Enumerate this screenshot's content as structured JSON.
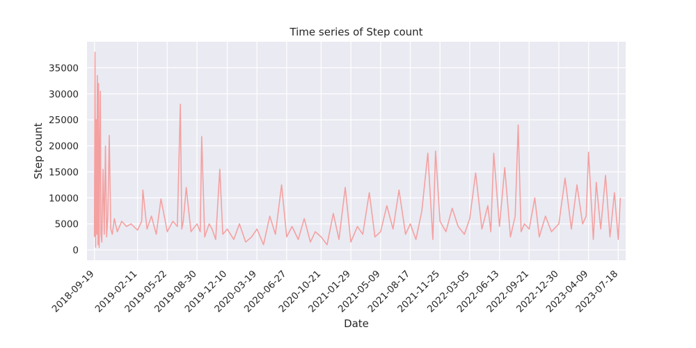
{
  "chart_data": {
    "type": "line",
    "title": "Time series of Step count",
    "xlabel": "Date",
    "ylabel": "Step count",
    "x_range": [
      "2018-08-25",
      "2023-08-12"
    ],
    "ylim": [
      -2000,
      40000
    ],
    "grid": true,
    "line_color": "#f4a0a0",
    "background_color": "#eaeaf2",
    "y_ticks": [
      0,
      5000,
      10000,
      15000,
      20000,
      25000,
      30000,
      35000
    ],
    "x_ticks": [
      "2018-09-19",
      "2019-02-11",
      "2019-05-22",
      "2019-08-30",
      "2019-12-10",
      "2020-03-19",
      "2020-06-27",
      "2020-10-21",
      "2021-01-29",
      "2021-05-09",
      "2021-08-17",
      "2021-11-25",
      "2022-03-05",
      "2022-06-13",
      "2022-09-21",
      "2022-12-30",
      "2023-04-09",
      "2023-07-18"
    ],
    "series": [
      {
        "x": [
          "2018-09-19",
          "2018-09-21",
          "2018-09-23",
          "2018-09-25",
          "2018-09-27",
          "2018-09-29",
          "2018-10-01",
          "2018-10-03",
          "2018-10-05",
          "2018-10-07",
          "2018-10-09",
          "2018-10-11",
          "2018-10-14",
          "2018-10-18",
          "2018-10-22",
          "2018-10-26",
          "2018-10-30",
          "2018-11-03",
          "2018-11-08",
          "2018-11-13",
          "2018-11-18",
          "2018-11-25",
          "2018-12-05",
          "2018-12-20",
          "2019-01-05",
          "2019-01-20",
          "2019-02-11",
          "2019-02-25",
          "2019-03-01",
          "2019-03-15",
          "2019-03-30",
          "2019-04-15",
          "2019-05-01",
          "2019-05-22",
          "2019-06-10",
          "2019-06-25",
          "2019-07-05",
          "2019-07-10",
          "2019-07-15",
          "2019-07-25",
          "2019-08-10",
          "2019-08-30",
          "2019-09-10",
          "2019-09-15",
          "2019-09-25",
          "2019-10-10",
          "2019-10-20",
          "2019-11-01",
          "2019-11-15",
          "2019-11-25",
          "2019-12-10",
          "2020-01-01",
          "2020-01-20",
          "2020-02-10",
          "2020-03-01",
          "2020-03-19",
          "2020-04-10",
          "2020-05-01",
          "2020-05-20",
          "2020-06-10",
          "2020-06-27",
          "2020-07-15",
          "2020-08-05",
          "2020-08-25",
          "2020-09-15",
          "2020-10-01",
          "2020-10-21",
          "2020-11-10",
          "2020-12-01",
          "2020-12-20",
          "2021-01-10",
          "2021-01-29",
          "2021-02-20",
          "2021-03-10",
          "2021-04-01",
          "2021-04-20",
          "2021-05-09",
          "2021-05-30",
          "2021-06-20",
          "2021-07-10",
          "2021-08-01",
          "2021-08-17",
          "2021-09-05",
          "2021-09-25",
          "2021-10-15",
          "2021-11-01",
          "2021-11-10",
          "2021-11-25",
          "2021-12-15",
          "2022-01-05",
          "2022-01-25",
          "2022-02-15",
          "2022-03-05",
          "2022-03-25",
          "2022-04-15",
          "2022-05-05",
          "2022-05-15",
          "2022-05-25",
          "2022-06-13",
          "2022-07-01",
          "2022-07-20",
          "2022-08-05",
          "2022-08-15",
          "2022-08-25",
          "2022-09-05",
          "2022-09-21",
          "2022-10-10",
          "2022-10-25",
          "2022-11-15",
          "2022-12-05",
          "2022-12-30",
          "2023-01-20",
          "2023-02-10",
          "2023-03-01",
          "2023-03-20",
          "2023-04-01",
          "2023-04-09",
          "2023-04-25",
          "2023-05-05",
          "2023-05-20",
          "2023-06-05",
          "2023-06-20",
          "2023-07-05",
          "2023-07-18",
          "2023-07-25"
        ],
        "y": [
          2500,
          38000,
          500,
          25000,
          3000,
          33500,
          1000,
          32000,
          500,
          20000,
          30500,
          3000,
          1500,
          15500,
          3000,
          20000,
          2500,
          6500,
          22000,
          4000,
          3000,
          6000,
          3500,
          5500,
          4500,
          5000,
          3800,
          5500,
          11500,
          4000,
          6500,
          3000,
          9800,
          3500,
          5500,
          4500,
          28000,
          4000,
          5500,
          12000,
          3500,
          5000,
          3500,
          21800,
          2500,
          5000,
          4000,
          2000,
          15500,
          3000,
          4000,
          2000,
          5000,
          1500,
          2500,
          4000,
          1000,
          6500,
          3000,
          12500,
          2500,
          4500,
          2000,
          6000,
          1500,
          3500,
          2500,
          1000,
          7000,
          2000,
          12000,
          1500,
          4500,
          3000,
          11000,
          2500,
          3500,
          8500,
          4000,
          11500,
          3000,
          5000,
          2000,
          7500,
          18600,
          2000,
          19000,
          5500,
          3500,
          8000,
          4500,
          3000,
          6000,
          14800,
          4000,
          8500,
          3500,
          18600,
          4500,
          15800,
          2500,
          6500,
          24000,
          3500,
          5000,
          4000,
          10000,
          2500,
          6500,
          3500,
          5000,
          13800,
          4000,
          12500,
          5000,
          6500,
          18800,
          2000,
          13000,
          4000,
          14300,
          2500,
          11000,
          2000,
          10000
        ]
      }
    ]
  }
}
